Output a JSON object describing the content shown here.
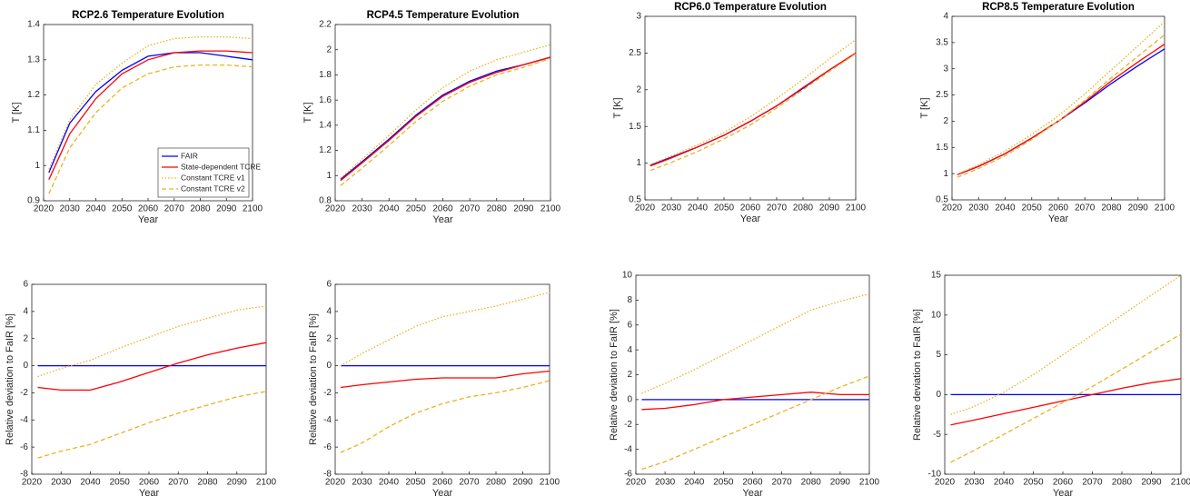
{
  "chart_data": [
    {
      "type": "line",
      "title": "RCP2.6 Temperature Evolution",
      "xlabel": "Year",
      "ylabel": "T [K]",
      "legend": "lower right",
      "x": [
        2022,
        2030,
        2040,
        2050,
        2060,
        2070,
        2080,
        2090,
        2100
      ],
      "xlim": [
        2020,
        2100
      ],
      "xticks": [
        2020,
        2030,
        2040,
        2050,
        2060,
        2070,
        2080,
        2090,
        2100
      ],
      "ylim": [
        0.9,
        1.4
      ],
      "yticks": [
        0.9,
        1,
        1.1,
        1.2,
        1.3,
        1.4
      ],
      "series": [
        {
          "name": "FAIR",
          "color": "#0000ff",
          "style": "solid",
          "values": [
            0.98,
            1.12,
            1.21,
            1.27,
            1.31,
            1.32,
            1.32,
            1.31,
            1.3
          ]
        },
        {
          "name": "State-dependent TCRE",
          "color": "#ff0000",
          "style": "solid",
          "values": [
            0.96,
            1.09,
            1.19,
            1.26,
            1.3,
            1.32,
            1.325,
            1.325,
            1.32
          ]
        },
        {
          "name": "Constant TCRE v1",
          "color": "#edb120",
          "style": "dotted",
          "values": [
            0.99,
            1.13,
            1.23,
            1.29,
            1.34,
            1.36,
            1.365,
            1.365,
            1.36
          ]
        },
        {
          "name": "Constant TCRE v2",
          "color": "#edb120",
          "style": "dashed",
          "values": [
            0.92,
            1.05,
            1.15,
            1.22,
            1.26,
            1.28,
            1.285,
            1.285,
            1.28
          ]
        }
      ]
    },
    {
      "type": "line",
      "title": "RCP4.5 Temperature Evolution",
      "xlabel": "Year",
      "ylabel": "T [K]",
      "x": [
        2022,
        2030,
        2040,
        2050,
        2060,
        2070,
        2080,
        2090,
        2100
      ],
      "xlim": [
        2020,
        2100
      ],
      "xticks": [
        2020,
        2030,
        2040,
        2050,
        2060,
        2070,
        2080,
        2090,
        2100
      ],
      "ylim": [
        0.8,
        2.2
      ],
      "yticks": [
        0.8,
        1,
        1.2,
        1.4,
        1.6,
        1.8,
        2,
        2.2
      ],
      "series": [
        {
          "color": "#0000ff",
          "style": "solid",
          "values": [
            0.97,
            1.11,
            1.29,
            1.48,
            1.64,
            1.75,
            1.83,
            1.88,
            1.94
          ]
        },
        {
          "color": "#ff0000",
          "style": "solid",
          "values": [
            0.96,
            1.1,
            1.28,
            1.47,
            1.63,
            1.74,
            1.82,
            1.88,
            1.94
          ]
        },
        {
          "color": "#edb120",
          "style": "dotted",
          "values": [
            0.98,
            1.13,
            1.32,
            1.52,
            1.7,
            1.83,
            1.92,
            1.98,
            2.04
          ]
        },
        {
          "color": "#edb120",
          "style": "dashed",
          "values": [
            0.92,
            1.06,
            1.24,
            1.43,
            1.59,
            1.71,
            1.8,
            1.86,
            1.93
          ]
        }
      ]
    },
    {
      "type": "line",
      "title": "RCP6.0 Temperature Evolution",
      "xlabel": "Year",
      "ylabel": "T [K]",
      "x": [
        2022,
        2030,
        2040,
        2050,
        2060,
        2070,
        2080,
        2090,
        2100
      ],
      "xlim": [
        2020,
        2100
      ],
      "xticks": [
        2020,
        2030,
        2040,
        2050,
        2060,
        2070,
        2080,
        2090,
        2100
      ],
      "ylim": [
        0.5,
        3
      ],
      "yticks": [
        0.5,
        1,
        1.5,
        2,
        2.5,
        3
      ],
      "series": [
        {
          "color": "#0000ff",
          "style": "solid",
          "values": [
            0.97,
            1.08,
            1.22,
            1.38,
            1.57,
            1.78,
            2.02,
            2.27,
            2.5
          ]
        },
        {
          "color": "#ff0000",
          "style": "solid",
          "values": [
            0.96,
            1.07,
            1.22,
            1.38,
            1.57,
            1.78,
            2.03,
            2.27,
            2.5
          ]
        },
        {
          "color": "#edb120",
          "style": "dotted",
          "values": [
            0.98,
            1.1,
            1.25,
            1.42,
            1.63,
            1.88,
            2.14,
            2.42,
            2.68
          ]
        },
        {
          "color": "#edb120",
          "style": "dashed",
          "values": [
            0.9,
            1.01,
            1.16,
            1.33,
            1.52,
            1.75,
            2.0,
            2.25,
            2.49
          ]
        }
      ]
    },
    {
      "type": "line",
      "title": "RCP8.5 Temperature Evolution",
      "xlabel": "Year",
      "ylabel": "T [K]",
      "x": [
        2022,
        2030,
        2040,
        2050,
        2060,
        2070,
        2080,
        2090,
        2100
      ],
      "xlim": [
        2020,
        2100
      ],
      "xticks": [
        2020,
        2030,
        2040,
        2050,
        2060,
        2070,
        2080,
        2090,
        2100
      ],
      "ylim": [
        0.5,
        4
      ],
      "yticks": [
        0.5,
        1,
        1.5,
        2,
        2.5,
        3,
        3.5,
        4
      ],
      "series": [
        {
          "color": "#0000ff",
          "style": "solid",
          "values": [
            0.98,
            1.14,
            1.38,
            1.68,
            2.0,
            2.35,
            2.72,
            3.06,
            3.38
          ]
        },
        {
          "color": "#ff0000",
          "style": "solid",
          "values": [
            0.98,
            1.14,
            1.38,
            1.68,
            2.0,
            2.37,
            2.77,
            3.13,
            3.47
          ]
        },
        {
          "color": "#edb120",
          "style": "dotted",
          "values": [
            0.99,
            1.17,
            1.43,
            1.75,
            2.1,
            2.52,
            2.98,
            3.44,
            3.9
          ]
        },
        {
          "color": "#edb120",
          "style": "dashed",
          "values": [
            0.93,
            1.1,
            1.34,
            1.65,
            2.0,
            2.4,
            2.83,
            3.24,
            3.65
          ]
        }
      ]
    },
    {
      "type": "line",
      "xlabel": "Year",
      "ylabel": "Relative deviation to FaIR [%]",
      "x": [
        2022,
        2030,
        2040,
        2050,
        2060,
        2070,
        2080,
        2090,
        2100
      ],
      "xlim": [
        2020,
        2100
      ],
      "xticks": [
        2020,
        2030,
        2040,
        2050,
        2060,
        2070,
        2080,
        2090,
        2100
      ],
      "ylim": [
        -8,
        6
      ],
      "yticks": [
        -8,
        -6,
        -4,
        -2,
        0,
        2,
        4,
        6
      ],
      "series": [
        {
          "color": "#0000ff",
          "style": "solid",
          "values": [
            0,
            0,
            0,
            0,
            0,
            0,
            0,
            0,
            0
          ]
        },
        {
          "color": "#ff0000",
          "style": "solid",
          "values": [
            -1.6,
            -1.8,
            -1.8,
            -1.2,
            -0.5,
            0.2,
            0.8,
            1.3,
            1.7
          ]
        },
        {
          "color": "#edb120",
          "style": "dotted",
          "values": [
            -0.8,
            -0.2,
            0.4,
            1.3,
            2.1,
            2.9,
            3.5,
            4.1,
            4.4
          ]
        },
        {
          "color": "#edb120",
          "style": "dashed",
          "values": [
            -6.8,
            -6.3,
            -5.8,
            -5.0,
            -4.2,
            -3.5,
            -2.9,
            -2.3,
            -1.9
          ]
        }
      ]
    },
    {
      "type": "line",
      "xlabel": "Year",
      "ylabel": "Relative deviation to FaIR [%]",
      "x": [
        2022,
        2030,
        2040,
        2050,
        2060,
        2070,
        2080,
        2090,
        2100
      ],
      "xlim": [
        2020,
        2100
      ],
      "xticks": [
        2020,
        2030,
        2040,
        2050,
        2060,
        2070,
        2080,
        2090,
        2100
      ],
      "ylim": [
        -8,
        6
      ],
      "yticks": [
        -8,
        -6,
        -4,
        -2,
        0,
        2,
        4,
        6
      ],
      "series": [
        {
          "color": "#0000ff",
          "style": "solid",
          "values": [
            0,
            0,
            0,
            0,
            0,
            0,
            0,
            0,
            0
          ]
        },
        {
          "color": "#ff0000",
          "style": "solid",
          "values": [
            -1.6,
            -1.4,
            -1.2,
            -1.0,
            -0.9,
            -0.9,
            -0.9,
            -0.6,
            -0.4
          ]
        },
        {
          "color": "#edb120",
          "style": "dotted",
          "values": [
            0.0,
            0.9,
            1.9,
            2.9,
            3.6,
            4.0,
            4.4,
            4.9,
            5.4
          ]
        },
        {
          "color": "#edb120",
          "style": "dashed",
          "values": [
            -6.4,
            -5.7,
            -4.5,
            -3.5,
            -2.8,
            -2.3,
            -2.0,
            -1.6,
            -1.1
          ]
        }
      ]
    },
    {
      "type": "line",
      "xlabel": "Year",
      "ylabel": "Relative deviation to FaIR [%]",
      "x": [
        2022,
        2030,
        2040,
        2050,
        2060,
        2070,
        2080,
        2090,
        2100
      ],
      "xlim": [
        2020,
        2100
      ],
      "xticks": [
        2020,
        2030,
        2040,
        2050,
        2060,
        2070,
        2080,
        2090,
        2100
      ],
      "ylim": [
        -6,
        10
      ],
      "yticks": [
        -6,
        -4,
        -2,
        0,
        2,
        4,
        6,
        8,
        10
      ],
      "series": [
        {
          "color": "#0000ff",
          "style": "solid",
          "values": [
            0,
            0,
            0,
            0,
            0,
            0,
            0,
            0,
            0
          ]
        },
        {
          "color": "#ff0000",
          "style": "solid",
          "values": [
            -0.8,
            -0.7,
            -0.4,
            0.0,
            0.2,
            0.4,
            0.6,
            0.4,
            0.4
          ]
        },
        {
          "color": "#edb120",
          "style": "dotted",
          "values": [
            0.5,
            1.3,
            2.4,
            3.6,
            4.8,
            6.0,
            7.2,
            7.9,
            8.5
          ]
        },
        {
          "color": "#edb120",
          "style": "dashed",
          "values": [
            -5.6,
            -5.0,
            -4.0,
            -3.0,
            -2.0,
            -1.0,
            0.0,
            1.0,
            1.9
          ]
        }
      ]
    },
    {
      "type": "line",
      "xlabel": "Year",
      "ylabel": "Relative deviation to FaIR [%]",
      "x": [
        2022,
        2030,
        2040,
        2050,
        2060,
        2070,
        2080,
        2090,
        2100
      ],
      "xlim": [
        2020,
        2100
      ],
      "xticks": [
        2020,
        2030,
        2040,
        2050,
        2060,
        2070,
        2080,
        2090,
        2100
      ],
      "ylim": [
        -10,
        15
      ],
      "yticks": [
        -10,
        -5,
        0,
        5,
        10,
        15
      ],
      "series": [
        {
          "color": "#0000ff",
          "style": "solid",
          "values": [
            0,
            0,
            0,
            0,
            0,
            0,
            0,
            0,
            0
          ]
        },
        {
          "color": "#ff0000",
          "style": "solid",
          "values": [
            -3.8,
            -3.2,
            -2.4,
            -1.6,
            -0.8,
            0.0,
            0.8,
            1.5,
            2.0
          ]
        },
        {
          "color": "#edb120",
          "style": "dotted",
          "values": [
            -2.5,
            -1.5,
            0.3,
            2.5,
            5.0,
            7.5,
            10.0,
            12.5,
            15.0
          ]
        },
        {
          "color": "#edb120",
          "style": "dashed",
          "values": [
            -8.5,
            -7.0,
            -5.0,
            -3.0,
            -1.0,
            1.0,
            3.2,
            5.4,
            7.6
          ]
        }
      ]
    }
  ]
}
